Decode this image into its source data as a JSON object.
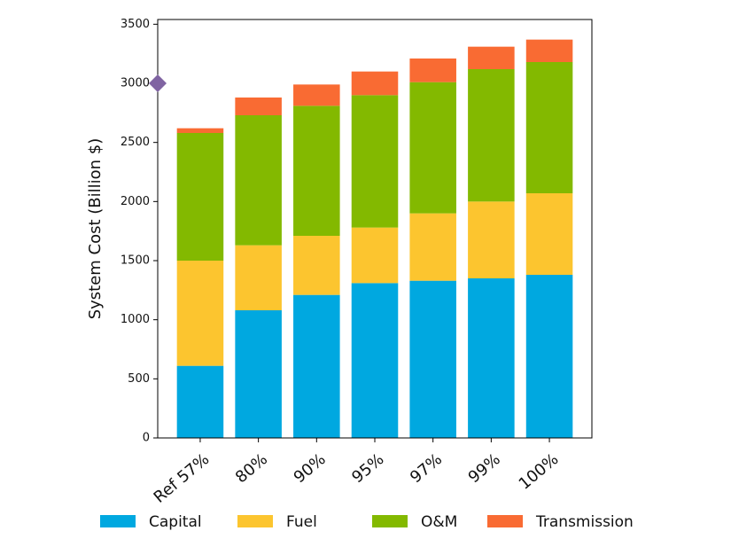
{
  "chart_data": {
    "type": "stacked_bar",
    "y_label": "System Cost (Billion $)",
    "categories": [
      "Ref 57%",
      "80%",
      "90%",
      "95%",
      "97%",
      "99%",
      "100%"
    ],
    "series": [
      {
        "name": "Capital",
        "color": "#00a8e0",
        "values": [
          610,
          1080,
          1210,
          1310,
          1330,
          1350,
          1380
        ]
      },
      {
        "name": "Fuel",
        "color": "#fcc52f",
        "values": [
          890,
          550,
          500,
          470,
          570,
          650,
          690
        ]
      },
      {
        "name": "O&M",
        "color": "#83b900",
        "values": [
          1080,
          1100,
          1100,
          1120,
          1110,
          1120,
          1110
        ]
      },
      {
        "name": "Transmission",
        "color": "#f96b33",
        "values": [
          40,
          150,
          180,
          200,
          200,
          190,
          190
        ]
      }
    ],
    "marker_value": 3000,
    "marker_color": "#8064a2",
    "ylim": [
      0,
      3540
    ],
    "yticks": [
      0,
      500,
      1000,
      1500,
      2000,
      2500,
      3000,
      3500
    ]
  }
}
